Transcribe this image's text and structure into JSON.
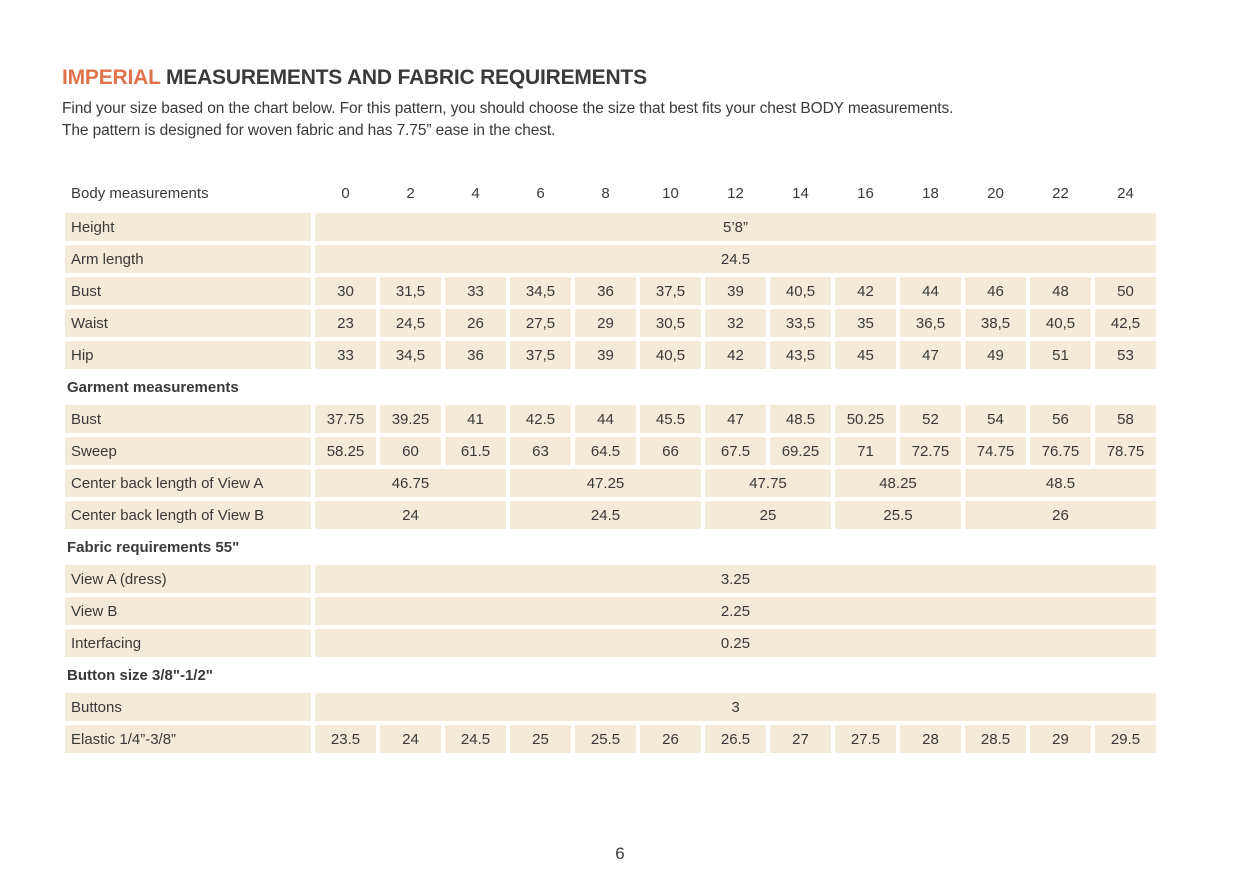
{
  "page": {
    "title_highlight": "IMPERIAL",
    "title_rest": " MEASUREMENTS AND FABRIC REQUIREMENTS",
    "intro_line1": "Find your size based on the chart below. For this pattern, you should choose the size that best fits your chest BODY measurements.",
    "intro_line2": "The pattern is designed for woven fabric and has 7.75” ease in the chest.",
    "page_number": "6"
  },
  "colors": {
    "accent_orange": "#e0734b",
    "cell_beige": "#f3ead8",
    "text_dark": "#3a3a39"
  },
  "table": {
    "header_label": "Body measurements",
    "sizes": [
      "0",
      "2",
      "4",
      "6",
      "8",
      "10",
      "12",
      "14",
      "16",
      "18",
      "20",
      "22",
      "24"
    ],
    "rows": [
      {
        "label": "Height",
        "type": "span-all",
        "value": "5’8”"
      },
      {
        "label": "Arm length",
        "type": "span-all",
        "value": "24.5"
      },
      {
        "label": "Bust",
        "type": "cells",
        "values": [
          "30",
          "31,5",
          "33",
          "34,5",
          "36",
          "37,5",
          "39",
          "40,5",
          "42",
          "44",
          "46",
          "48",
          "50"
        ]
      },
      {
        "label": "Waist",
        "type": "cells",
        "values": [
          "23",
          "24,5",
          "26",
          "27,5",
          "29",
          "30,5",
          "32",
          "33,5",
          "35",
          "36,5",
          "38,5",
          "40,5",
          "42,5"
        ]
      },
      {
        "label": "Hip",
        "type": "cells",
        "values": [
          "33",
          "34,5",
          "36",
          "37,5",
          "39",
          "40,5",
          "42",
          "43,5",
          "45",
          "47",
          "49",
          "51",
          "53"
        ]
      },
      {
        "label": "Garment measurements",
        "type": "section"
      },
      {
        "label": "Bust",
        "type": "cells",
        "values": [
          "37.75",
          "39.25",
          "41",
          "42.5",
          "44",
          "45.5",
          "47",
          "48.5",
          "50.25",
          "52",
          "54",
          "56",
          "58"
        ]
      },
      {
        "label": "Sweep",
        "type": "cells",
        "values": [
          "58.25",
          "60",
          "61.5",
          "63",
          "64.5",
          "66",
          "67.5",
          "69.25",
          "71",
          "72.75",
          "74.75",
          "76.75",
          "78.75"
        ]
      },
      {
        "label": "Center back length of View A",
        "type": "groups",
        "groups": [
          {
            "span": 3,
            "value": "46.75"
          },
          {
            "span": 3,
            "value": "47.25"
          },
          {
            "span": 2,
            "value": "47.75"
          },
          {
            "span": 2,
            "value": "48.25"
          },
          {
            "span": 3,
            "value": "48.5"
          }
        ]
      },
      {
        "label": "Center back length of View  B",
        "type": "groups",
        "groups": [
          {
            "span": 3,
            "value": "24"
          },
          {
            "span": 3,
            "value": "24.5"
          },
          {
            "span": 2,
            "value": "25"
          },
          {
            "span": 2,
            "value": "25.5"
          },
          {
            "span": 3,
            "value": "26"
          }
        ]
      },
      {
        "label": "Fabric requirements 55\"",
        "type": "section"
      },
      {
        "label": "View A (dress)",
        "type": "span-all",
        "value": "3.25"
      },
      {
        "label": "View B",
        "type": "span-all",
        "value": "2.25"
      },
      {
        "label": "Interfacing",
        "type": "span-all",
        "value": "0.25"
      },
      {
        "label": "Button size  3/8\"-1/2\"",
        "type": "section"
      },
      {
        "label": "Buttons",
        "type": "span-all",
        "value": "3"
      },
      {
        "label": "Elastic 1/4”-3/8”",
        "type": "cells",
        "values": [
          "23.5",
          "24",
          "24.5",
          "25",
          "25.5",
          "26",
          "26.5",
          "27",
          "27.5",
          "28",
          "28.5",
          "29",
          "29.5"
        ]
      }
    ]
  }
}
